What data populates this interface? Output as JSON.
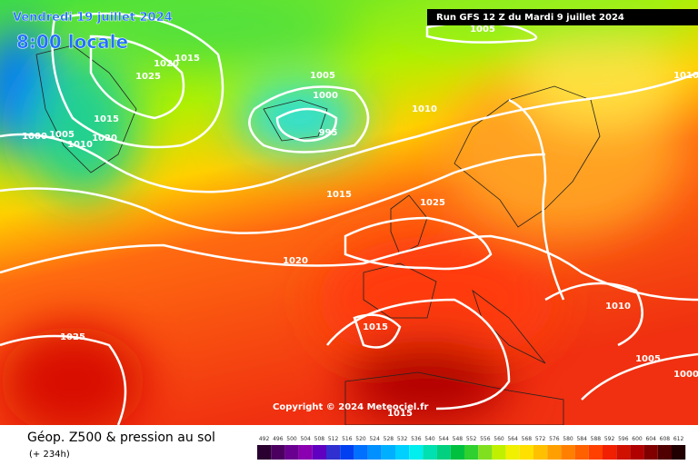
{
  "header": {
    "date": "Vendredi 19 juillet 2024",
    "time": "8:00 locale",
    "run": "Run GFS 12 Z du Mardi 9 juillet 2024"
  },
  "isobar_labels": [
    "1005",
    "1020",
    "1015",
    "1025",
    "1015",
    "1020",
    "1000",
    "1005",
    "1010",
    "1005",
    "1000",
    "995",
    "1010",
    "1010",
    "1015",
    "1025",
    "1020",
    "1025",
    "1015",
    "1010",
    "1005",
    "1000",
    "1015"
  ],
  "copyright": "Copyright © 2024 Meteociel.fr",
  "footer": {
    "title": "Géop. Z500 & pression au sol",
    "lead": "(+ 234h)"
  },
  "legend": {
    "values": [
      492,
      496,
      500,
      504,
      508,
      512,
      516,
      520,
      524,
      528,
      532,
      536,
      540,
      544,
      548,
      552,
      556,
      560,
      564,
      568,
      572,
      576,
      580,
      584,
      588,
      592,
      596,
      600,
      604,
      608,
      612
    ],
    "colors": [
      "#2a0030",
      "#4b0060",
      "#6a0090",
      "#8a00b0",
      "#6000c0",
      "#3030d0",
      "#0040f0",
      "#0070ff",
      "#0090ff",
      "#00b0ff",
      "#00d0ff",
      "#00eeee",
      "#00e0b0",
      "#00d080",
      "#00c040",
      "#30d030",
      "#80e020",
      "#c0f000",
      "#f0f000",
      "#ffe000",
      "#ffc000",
      "#ffa000",
      "#ff8000",
      "#ff6000",
      "#ff4000",
      "#f02000",
      "#d01000",
      "#b00000",
      "#800000",
      "#500000",
      "#200000"
    ]
  }
}
